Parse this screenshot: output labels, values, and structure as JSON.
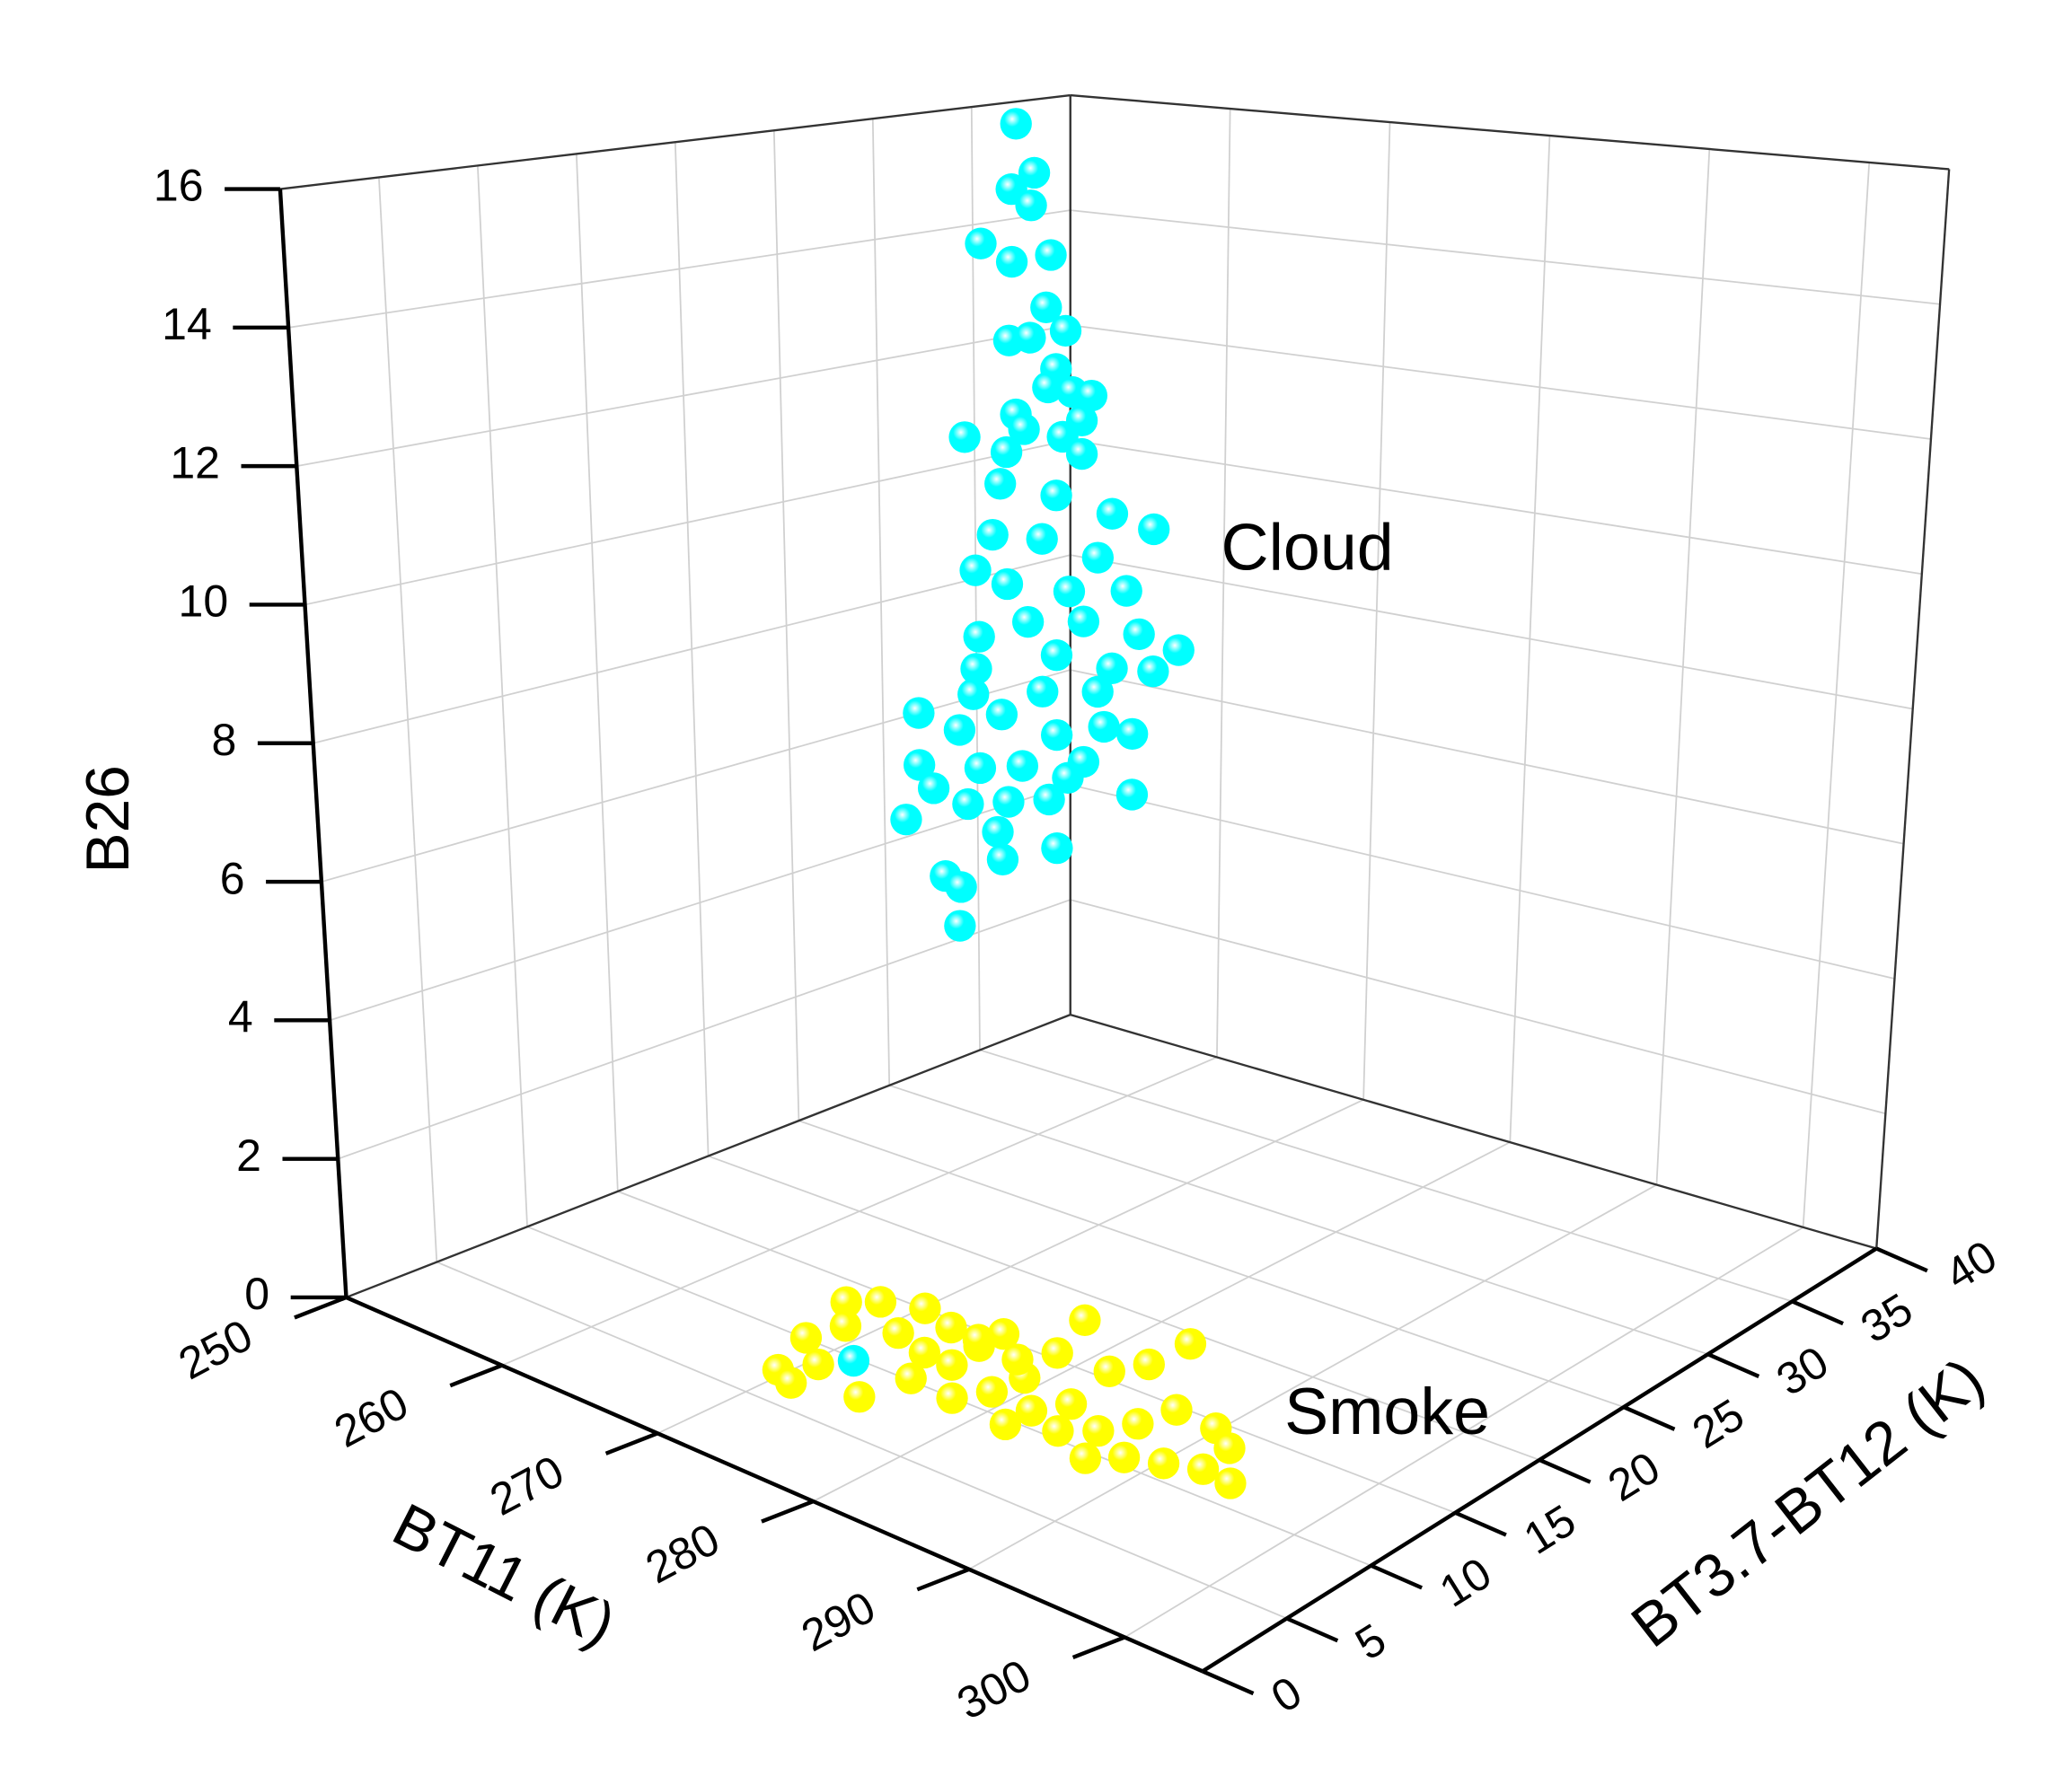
{
  "chart_data": {
    "type": "scatter3d",
    "xlabel": "BT11 (K)",
    "ylabel": "BT3.7-BT12 (K)",
    "zlabel": "B26",
    "xlim": [
      250,
      305
    ],
    "ylim": [
      0,
      40
    ],
    "zlim": [
      0,
      16
    ],
    "xticks": [
      250,
      260,
      270,
      280,
      290,
      300
    ],
    "yticks": [
      0,
      5,
      10,
      15,
      20,
      25,
      30,
      35,
      40
    ],
    "zticks": [
      0,
      2,
      4,
      6,
      8,
      10,
      12,
      14,
      16
    ],
    "grid": true,
    "series": [
      {
        "name": "Cloud",
        "color": "#00ffff",
        "x": [
          268.4,
          269.5,
          268.1,
          269.3,
          266.2,
          268.1,
          270.5,
          270.2,
          271.4,
          267.9,
          269.2,
          270.8,
          270.3,
          271.8,
          273.0,
          272.4,
          268.3,
          268.8,
          265.1,
          267.7,
          271.2,
          272.4,
          267.3,
          270.8,
          274.3,
          276.9,
          266.8,
          269.9,
          273.4,
          267.7,
          271.6,
          275.2,
          265.7,
          269.0,
          272.5,
          276.0,
          278.5,
          265.9,
          270.8,
          274.3,
          276.9,
          265.7,
          269.9,
          273.4,
          275.6,
          265.5,
          267.3,
          270.8,
          272.5,
          275.6,
          262.0,
          264.6,
          265.9,
          268.6,
          262.0,
          262.9,
          265.1,
          267.7,
          270.3,
          270.8,
          267.0,
          261.1,
          267.3,
          263.6,
          264.6,
          264.5,
          271.5,
          273.8,
          273.6
        ],
        "y": [
          22,
          22,
          22,
          22,
          22,
          22,
          22,
          22,
          22,
          22,
          22,
          22,
          22,
          22,
          22,
          22,
          22,
          22,
          22,
          22,
          22,
          22,
          22,
          22,
          22,
          22,
          22,
          22,
          22,
          22,
          22,
          22,
          22,
          22,
          22,
          22,
          22,
          22,
          22,
          22,
          22,
          22,
          22,
          22,
          22,
          22,
          22,
          22,
          22,
          22,
          22,
          22,
          22,
          22,
          22,
          22,
          22,
          22,
          22,
          22,
          22,
          22,
          22,
          22,
          22,
          22,
          22,
          22,
          8
        ],
        "z": [
          16.9,
          16.2,
          15.9,
          15.7,
          15.0,
          14.8,
          15.0,
          14.2,
          13.9,
          13.6,
          13.7,
          13.3,
          13.0,
          13.0,
          13.0,
          12.6,
          12.5,
          12.3,
          12.0,
          11.9,
          12.3,
          12.1,
          11.4,
          11.4,
          11.3,
          11.2,
          10.6,
          10.7,
          10.6,
          9.9,
          10.0,
          10.2,
          10.0,
          9.4,
          9.6,
          9.6,
          9.5,
          9.0,
          9.0,
          9.0,
          9.1,
          8.5,
          8.4,
          8.6,
          8.1,
          8.1,
          7.9,
          7.8,
          7.5,
          7.2,
          7.6,
          7.5,
          7.0,
          7.2,
          6.8,
          6.5,
          6.4,
          6.6,
          6.8,
          6.1,
          6.1,
          5.9,
          5.7,
          5.2,
          5.1,
          4.5,
          7.2,
          8.1,
          0.4
        ]
      },
      {
        "name": "Smoke",
        "color": "#ffff00",
        "x": [
          268.4,
          269.6,
          271.7,
          269.7,
          270.2,
          272.6,
          274.1,
          271.1,
          272.1,
          272.5,
          275.9,
          276.4,
          276.9,
          276.5,
          276.5,
          279.3,
          280.3,
          280.5,
          279.9,
          278.5,
          283.1,
          284.1,
          283.2,
          284.2,
          284.3,
          287.0,
          288.0,
          288.5,
          291.3,
          293.2,
          289.8,
          291.7,
          293.6,
          295.6,
          285.5,
          283.1,
          288.4,
          276.0,
          275.0,
          278.9
        ],
        "y": [
          12.1,
          13.0,
          13.7,
          8.7,
          10.5,
          11.4,
          13.1,
          5.9,
          7.3,
          5.4,
          6.3,
          8.8,
          10.7,
          12.6,
          14.0,
          8.6,
          10.0,
          11.7,
          14.1,
          16.9,
          9.8,
          11.2,
          14.2,
          15.6,
          17.9,
          10.2,
          11.6,
          13.4,
          13.2,
          12.3,
          9.2,
          9.8,
          10.4,
          10.2,
          9.2,
          8.3,
          8.2,
          13.0,
          10.8,
          12.7
        ],
        "z": [
          0.3,
          0.3,
          0.3,
          0.3,
          0.3,
          0.3,
          0.3,
          0.3,
          0.3,
          0.3,
          0.3,
          0.3,
          0.3,
          0.3,
          0.3,
          0.3,
          0.3,
          0.3,
          0.3,
          0.3,
          0.3,
          0.3,
          0.3,
          0.3,
          0.3,
          0.3,
          0.3,
          0.3,
          0.3,
          0.3,
          0.3,
          0.3,
          0.3,
          0.3,
          0.3,
          0.3,
          0.3,
          0.3,
          0.3,
          0.3
        ]
      }
    ]
  }
}
